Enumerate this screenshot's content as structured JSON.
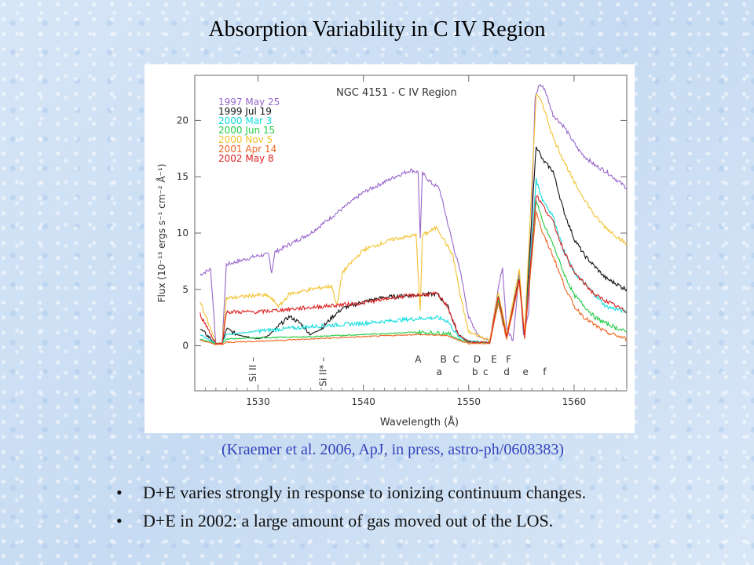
{
  "slide": {
    "title": "Absorption Variability in C IV Region",
    "citation": "(Kraemer et al. 2006, ApJ, in press, astro-ph/0608383)",
    "bullets": [
      "D+E varies strongly in response to ionizing continuum changes.",
      "D+E in 2002: a large amount of gas moved out of the LOS."
    ]
  },
  "chart_data": {
    "type": "line",
    "title": "NGC 4151 - C IV Region",
    "xlabel": "Wavelength (Å)",
    "ylabel": "Flux (10⁻¹³ ergs s⁻¹ cm⁻² Å⁻¹)",
    "xlim": [
      1524,
      1565
    ],
    "ylim": [
      -4,
      24
    ],
    "xticks": [
      1530,
      1540,
      1550,
      1560
    ],
    "yticks": [
      0,
      5,
      10,
      15,
      20
    ],
    "legend_position": "top-left",
    "series": [
      {
        "name": "1997 May 25",
        "color": "#9966cc",
        "points": [
          [
            1524.5,
            6.3
          ],
          [
            1525.5,
            6.8
          ],
          [
            1526.0,
            0.2
          ],
          [
            1526.6,
            0.2
          ],
          [
            1527.0,
            7.2
          ],
          [
            1530,
            8.0
          ],
          [
            1531,
            8.1
          ],
          [
            1531.3,
            6.5
          ],
          [
            1531.6,
            8.3
          ],
          [
            1535,
            10.0
          ],
          [
            1540,
            13.6
          ],
          [
            1543,
            15.0
          ],
          [
            1544.5,
            15.6
          ],
          [
            1545.2,
            15.4
          ],
          [
            1545.4,
            9.5
          ],
          [
            1545.6,
            15.3
          ],
          [
            1546.5,
            14.4
          ],
          [
            1547.2,
            14.0
          ],
          [
            1548.5,
            9.0
          ],
          [
            1549.3,
            6.2
          ],
          [
            1550,
            2.5
          ],
          [
            1551,
            0.8
          ],
          [
            1552,
            0.5
          ],
          [
            1552.8,
            5.0
          ],
          [
            1553.2,
            7.0
          ],
          [
            1553.6,
            1.5
          ],
          [
            1554.2,
            0.5
          ],
          [
            1554.8,
            6.5
          ],
          [
            1555.2,
            1.0
          ],
          [
            1555.7,
            3.0
          ],
          [
            1556.3,
            22.0
          ],
          [
            1556.7,
            23.2
          ],
          [
            1557.2,
            22.8
          ],
          [
            1558,
            20.5
          ],
          [
            1559,
            19.5
          ],
          [
            1560,
            18.0
          ],
          [
            1560.5,
            17.3
          ],
          [
            1561,
            16.8
          ],
          [
            1562,
            16.0
          ],
          [
            1563,
            15.5
          ],
          [
            1565,
            14.0
          ]
        ]
      },
      {
        "name": "1999 Jul 19",
        "color": "#111111",
        "points": [
          [
            1524.5,
            1.5
          ],
          [
            1526.0,
            0.2
          ],
          [
            1526.6,
            0.2
          ],
          [
            1527,
            1.5
          ],
          [
            1528,
            1.0
          ],
          [
            1529,
            0.8
          ],
          [
            1530,
            0.6
          ],
          [
            1531,
            0.9
          ],
          [
            1532,
            1.8
          ],
          [
            1533,
            2.6
          ],
          [
            1534,
            2.0
          ],
          [
            1535,
            1.0
          ],
          [
            1536,
            1.5
          ],
          [
            1537,
            2.5
          ],
          [
            1538,
            3.3
          ],
          [
            1540,
            3.9
          ],
          [
            1542,
            4.3
          ],
          [
            1545,
            4.5
          ],
          [
            1547,
            4.6
          ],
          [
            1548,
            3.5
          ],
          [
            1549,
            1.0
          ],
          [
            1550,
            0.4
          ],
          [
            1552,
            0.3
          ],
          [
            1552.8,
            4.5
          ],
          [
            1553.6,
            0.8
          ],
          [
            1554.8,
            6.2
          ],
          [
            1555.3,
            0.8
          ],
          [
            1556.4,
            17.8
          ],
          [
            1557,
            16.5
          ],
          [
            1558,
            15.5
          ],
          [
            1559,
            12.0
          ],
          [
            1560,
            9.5
          ],
          [
            1561,
            8.0
          ],
          [
            1562,
            7.0
          ],
          [
            1563,
            6.0
          ],
          [
            1565,
            5.0
          ]
        ]
      },
      {
        "name": "2000 Mar 3",
        "color": "#11dddd",
        "points": [
          [
            1524.5,
            1.0
          ],
          [
            1526.0,
            0.2
          ],
          [
            1526.6,
            0.2
          ],
          [
            1527,
            1.0
          ],
          [
            1530,
            1.3
          ],
          [
            1535,
            1.7
          ],
          [
            1540,
            2.0
          ],
          [
            1545,
            2.4
          ],
          [
            1547,
            2.5
          ],
          [
            1548,
            2.2
          ],
          [
            1549,
            0.8
          ],
          [
            1550,
            0.4
          ],
          [
            1552,
            0.3
          ],
          [
            1552.8,
            4.2
          ],
          [
            1553.6,
            0.8
          ],
          [
            1554.8,
            6.0
          ],
          [
            1555.3,
            0.8
          ],
          [
            1556.4,
            14.7
          ],
          [
            1557,
            13.0
          ],
          [
            1558,
            11.5
          ],
          [
            1559,
            8.5
          ],
          [
            1560,
            6.5
          ],
          [
            1561,
            5.5
          ],
          [
            1562,
            4.5
          ],
          [
            1563,
            3.5
          ],
          [
            1565,
            3.0
          ]
        ]
      },
      {
        "name": "2000 Jun 15",
        "color": "#22cc44",
        "points": [
          [
            1524.5,
            0.6
          ],
          [
            1526.0,
            0.2
          ],
          [
            1526.6,
            0.2
          ],
          [
            1527,
            0.6
          ],
          [
            1530,
            0.7
          ],
          [
            1535,
            0.8
          ],
          [
            1540,
            1.0
          ],
          [
            1545,
            1.2
          ],
          [
            1548,
            1.1
          ],
          [
            1549,
            0.6
          ],
          [
            1550,
            0.3
          ],
          [
            1552,
            0.3
          ],
          [
            1552.8,
            4.0
          ],
          [
            1553.6,
            0.7
          ],
          [
            1554.8,
            5.8
          ],
          [
            1555.3,
            0.7
          ],
          [
            1556.4,
            13.0
          ],
          [
            1557,
            11.0
          ],
          [
            1558,
            9.0
          ],
          [
            1559,
            6.5
          ],
          [
            1560,
            4.5
          ],
          [
            1561,
            3.5
          ],
          [
            1562,
            2.5
          ],
          [
            1563,
            2.0
          ],
          [
            1565,
            1.2
          ]
        ]
      },
      {
        "name": "2000 Nov 5",
        "color": "#f2c12e",
        "points": [
          [
            1524.5,
            4.0
          ],
          [
            1526.0,
            0.2
          ],
          [
            1526.6,
            0.2
          ],
          [
            1527,
            4.2
          ],
          [
            1530,
            4.5
          ],
          [
            1531,
            4.4
          ],
          [
            1532,
            3.5
          ],
          [
            1533,
            4.6
          ],
          [
            1535,
            5.0
          ],
          [
            1537,
            5.3
          ],
          [
            1537.5,
            3.5
          ],
          [
            1538,
            6.5
          ],
          [
            1540,
            8.5
          ],
          [
            1543,
            9.5
          ],
          [
            1545,
            9.8
          ],
          [
            1545.4,
            3.0
          ],
          [
            1545.6,
            9.8
          ],
          [
            1547,
            10.5
          ],
          [
            1548.5,
            8.0
          ],
          [
            1549.3,
            4.0
          ],
          [
            1550,
            1.2
          ],
          [
            1552,
            0.5
          ],
          [
            1552.8,
            4.8
          ],
          [
            1553.6,
            1.0
          ],
          [
            1554.8,
            6.8
          ],
          [
            1555.3,
            1.0
          ],
          [
            1556.4,
            22.3
          ],
          [
            1557,
            21.5
          ],
          [
            1558,
            18.5
          ],
          [
            1559,
            16.5
          ],
          [
            1560,
            14.5
          ],
          [
            1561,
            13.0
          ],
          [
            1562,
            11.5
          ],
          [
            1563,
            10.5
          ],
          [
            1565,
            9.0
          ]
        ]
      },
      {
        "name": "2001 Apr 14",
        "color": "#ee6622",
        "points": [
          [
            1524.5,
            0.5
          ],
          [
            1526.0,
            0.1
          ],
          [
            1526.6,
            0.1
          ],
          [
            1527,
            0.3
          ],
          [
            1530,
            0.4
          ],
          [
            1535,
            0.6
          ],
          [
            1540,
            0.8
          ],
          [
            1545,
            1.0
          ],
          [
            1548,
            0.9
          ],
          [
            1549,
            0.5
          ],
          [
            1550,
            0.2
          ],
          [
            1552,
            0.2
          ],
          [
            1552.8,
            3.8
          ],
          [
            1553.6,
            0.6
          ],
          [
            1554.8,
            5.6
          ],
          [
            1555.3,
            0.6
          ],
          [
            1556.4,
            12.0
          ],
          [
            1557,
            10.0
          ],
          [
            1558,
            8.0
          ],
          [
            1559,
            5.5
          ],
          [
            1560,
            3.5
          ],
          [
            1561,
            2.5
          ],
          [
            1562,
            1.8
          ],
          [
            1563,
            1.2
          ],
          [
            1565,
            0.6
          ]
        ]
      },
      {
        "name": "2002 May 8",
        "color": "#dd2222",
        "points": [
          [
            1524.5,
            2.8
          ],
          [
            1526.0,
            0.2
          ],
          [
            1526.6,
            0.2
          ],
          [
            1527,
            3.0
          ],
          [
            1530,
            3.0
          ],
          [
            1535,
            3.4
          ],
          [
            1540,
            3.8
          ],
          [
            1543,
            4.3
          ],
          [
            1545,
            4.5
          ],
          [
            1547,
            4.6
          ],
          [
            1548,
            3.5
          ],
          [
            1549,
            1.0
          ],
          [
            1550,
            0.3
          ],
          [
            1552,
            0.3
          ],
          [
            1552.8,
            4.4
          ],
          [
            1553.6,
            0.8
          ],
          [
            1554.8,
            6.0
          ],
          [
            1555.3,
            0.8
          ],
          [
            1556.4,
            13.4
          ],
          [
            1557,
            12.5
          ],
          [
            1558,
            11.0
          ],
          [
            1559,
            8.5
          ],
          [
            1560,
            6.5
          ],
          [
            1561,
            5.5
          ],
          [
            1562,
            4.5
          ],
          [
            1563,
            4.0
          ],
          [
            1565,
            3.0
          ]
        ]
      }
    ],
    "annotations": [
      {
        "text": "Si II",
        "x": 1529.5,
        "kind": "vertical"
      },
      {
        "text": "Si II*",
        "x": 1536.2,
        "kind": "vertical"
      },
      {
        "text": "A",
        "x": 1545.2,
        "row": "upper"
      },
      {
        "text": "B",
        "x": 1547.6,
        "row": "upper"
      },
      {
        "text": "C",
        "x": 1548.8,
        "row": "upper"
      },
      {
        "text": "D",
        "x": 1550.8,
        "row": "upper"
      },
      {
        "text": "E",
        "x": 1552.4,
        "row": "upper"
      },
      {
        "text": "F",
        "x": 1553.8,
        "row": "upper"
      },
      {
        "text": "a",
        "x": 1547.2,
        "row": "lower"
      },
      {
        "text": "b",
        "x": 1550.6,
        "row": "lower"
      },
      {
        "text": "c",
        "x": 1551.6,
        "row": "lower"
      },
      {
        "text": "d",
        "x": 1553.6,
        "row": "lower"
      },
      {
        "text": "e",
        "x": 1555.4,
        "row": "lower"
      },
      {
        "text": "f",
        "x": 1557.2,
        "row": "lower"
      }
    ]
  }
}
